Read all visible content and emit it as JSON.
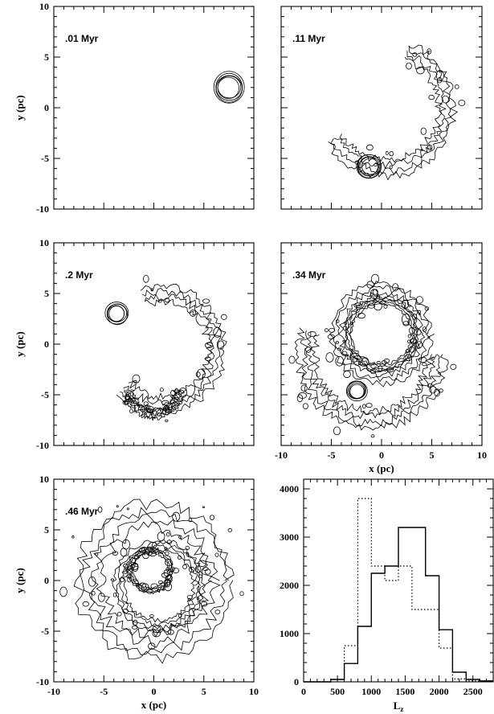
{
  "figure": {
    "panels": [
      {
        "id": "p1",
        "time_label": ".01 Myr",
        "ylabel": "y (pc)",
        "xlabel": "",
        "show_x_ticklabels": false,
        "show_y_ticklabels": true
      },
      {
        "id": "p2",
        "time_label": ".11 Myr",
        "ylabel": "",
        "xlabel": "",
        "show_x_ticklabels": false,
        "show_y_ticklabels": false
      },
      {
        "id": "p3",
        "time_label": ".2 Myr",
        "ylabel": "y (pc)",
        "xlabel": "",
        "show_x_ticklabels": false,
        "show_y_ticklabels": true
      },
      {
        "id": "p4",
        "time_label": ".34 Myr",
        "ylabel": "",
        "xlabel": "x (pc)",
        "show_x_ticklabels": true,
        "show_y_ticklabels": false
      },
      {
        "id": "p5",
        "time_label": ".46 Myr",
        "ylabel": "y (pc)",
        "xlabel": "x (pc)",
        "show_x_ticklabels": true,
        "show_y_ticklabels": true
      }
    ],
    "contour_axes": {
      "xlim": [
        -10,
        10
      ],
      "ylim": [
        -10,
        10
      ],
      "major_ticks": [
        -10,
        -5,
        0,
        5,
        10
      ],
      "tick_labels": [
        "-10",
        "-5",
        "0",
        "5",
        "10"
      ]
    }
  },
  "chart_data": [
    {
      "type": "contour",
      "panel": "p1",
      "time_label": ".01 Myr",
      "xlabel": "",
      "ylabel": "y (pc)",
      "xlim": [
        -10,
        10
      ],
      "ylim": [
        -10,
        10
      ],
      "features": [
        {
          "kind": "cluster",
          "center": [
            7.5,
            2.0
          ],
          "radius": 1.5
        }
      ]
    },
    {
      "type": "contour",
      "panel": "p2",
      "time_label": ".11 Myr",
      "xlabel": "",
      "ylabel": "",
      "xlim": [
        -10,
        10
      ],
      "ylim": [
        -10,
        10
      ],
      "features": [
        {
          "kind": "cluster",
          "center": [
            -1.2,
            -5.8
          ],
          "radius": 1.2
        },
        {
          "kind": "arc",
          "center": [
            0.5,
            0.0
          ],
          "radius": 6.0,
          "from_deg": -150,
          "to_deg": 70,
          "width": 1.6
        }
      ]
    },
    {
      "type": "contour",
      "panel": "p3",
      "time_label": ".2 Myr",
      "xlabel": "",
      "ylabel": "y (pc)",
      "xlim": [
        -10,
        10
      ],
      "ylim": [
        -10,
        10
      ],
      "features": [
        {
          "kind": "cluster",
          "center": [
            -3.7,
            3.0
          ],
          "radius": 1.1
        },
        {
          "kind": "arc",
          "center": [
            0.8,
            -0.5
          ],
          "radius": 5.5,
          "from_deg": -135,
          "to_deg": 110,
          "width": 1.6
        },
        {
          "kind": "arc",
          "center": [
            0.0,
            -4.5
          ],
          "radius": 2.5,
          "from_deg": -180,
          "to_deg": 0,
          "width": 0.8
        }
      ]
    },
    {
      "type": "contour",
      "panel": "p4",
      "time_label": ".34 Myr",
      "xlabel": "x (pc)",
      "ylabel": "",
      "xlim": [
        -10,
        10
      ],
      "ylim": [
        -10,
        10
      ],
      "features": [
        {
          "kind": "cluster",
          "center": [
            -2.5,
            -4.6
          ],
          "radius": 1.0
        },
        {
          "kind": "ring",
          "center": [
            0.0,
            1.0
          ],
          "radius": 4.3,
          "width": 1.4
        },
        {
          "kind": "ring",
          "center": [
            0.0,
            1.0
          ],
          "radius": 3.3,
          "width": 0.6
        },
        {
          "kind": "arc",
          "center": [
            -1.0,
            -1.0
          ],
          "radius": 6.5,
          "from_deg": -200,
          "to_deg": 0,
          "width": 1.8
        }
      ]
    },
    {
      "type": "contour",
      "panel": "p5",
      "time_label": ".46 Myr",
      "xlabel": "x (pc)",
      "ylabel": "y (pc)",
      "xlim": [
        -10,
        10
      ],
      "ylim": [
        -10,
        10
      ],
      "features": [
        {
          "kind": "ring",
          "center": [
            0.5,
            -0.5
          ],
          "radius": 4.0,
          "width": 1.0
        },
        {
          "kind": "ring",
          "center": [
            0.0,
            0.0
          ],
          "radius": 6.5,
          "width": 2.5
        },
        {
          "kind": "ring",
          "center": [
            -0.3,
            1.0
          ],
          "radius": 2.0,
          "width": 0.5
        }
      ]
    },
    {
      "type": "histogram",
      "panel": "p6",
      "xlabel": "L",
      "xlabel_subscript": "z",
      "ylabel": "",
      "xlim": [
        0,
        2800
      ],
      "ylim": [
        0,
        4200
      ],
      "x_ticks": [
        0,
        500,
        1000,
        1500,
        2000,
        2500
      ],
      "y_ticks": [
        0,
        1000,
        2000,
        3000,
        4000
      ],
      "bin_edges": [
        0,
        400,
        600,
        800,
        1000,
        1200,
        1400,
        1600,
        1800,
        2000,
        2200,
        2400,
        2600,
        2800
      ],
      "series": [
        {
          "style": "solid",
          "values": [
            0,
            50,
            380,
            1150,
            2250,
            2400,
            3200,
            3200,
            2200,
            1080,
            200,
            50,
            20
          ]
        },
        {
          "style": "dotted",
          "values": [
            0,
            50,
            750,
            3800,
            2400,
            2100,
            2400,
            1500,
            1500,
            700,
            60,
            20,
            10
          ]
        }
      ]
    }
  ]
}
